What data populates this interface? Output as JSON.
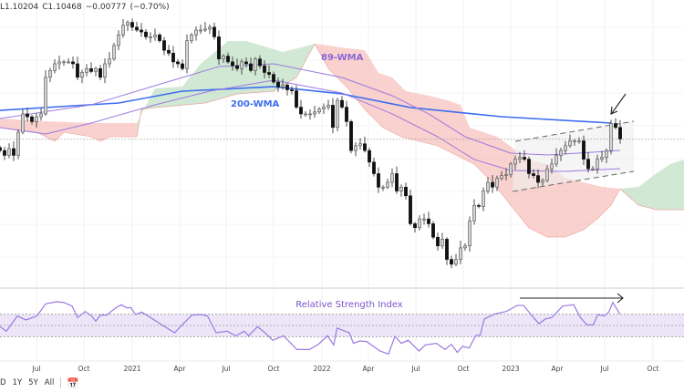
{
  "legend": {
    "low": "L1.10204",
    "close": "C1.10468",
    "change": "−0.00777",
    "change_pct": "(−0.70%)"
  },
  "bottom_bar": {
    "ranges": [
      "D",
      "1Y",
      "5Y",
      "All"
    ],
    "calendar_icon": "calendar-goto-icon"
  },
  "colors": {
    "bull": "#d4d4d4",
    "bear": "#111111",
    "wma200": "#3d6ef0",
    "wma89": "#9c7ae0",
    "cloud_bear": "#f6b9b3",
    "cloud_bull": "#b9ddbd",
    "rsi": "#9c7ae0",
    "rsi_band": "#ece6f8"
  },
  "chart_data": {
    "type": "candlestick",
    "instrument_last_close": 1.10468,
    "time_unit_note": "t index, 1 unit ≈ 1.25 weeks",
    "xlim": [
      0,
      150
    ],
    "ylim": [
      0.95,
      1.2492
    ],
    "x_ticks": [
      {
        "t": 8,
        "label": "Jul"
      },
      {
        "t": 18.4,
        "label": "Oct"
      },
      {
        "t": 29,
        "label": "2021"
      },
      {
        "t": 39.4,
        "label": "Apr"
      },
      {
        "t": 49.6,
        "label": "Jul"
      },
      {
        "t": 60,
        "label": "Oct"
      },
      {
        "t": 70.6,
        "label": "2022"
      },
      {
        "t": 80.8,
        "label": "Apr"
      },
      {
        "t": 91.2,
        "label": "Jul"
      },
      {
        "t": 101.6,
        "label": "Oct"
      },
      {
        "t": 112,
        "label": "2023"
      },
      {
        "t": 122.2,
        "label": "Apr"
      },
      {
        "t": 132.6,
        "label": "Jul"
      },
      {
        "t": 143.2,
        "label": "Oct"
      }
    ],
    "closes": [
      1.093,
      1.088,
      1.095,
      1.088,
      1.112,
      1.131,
      1.128,
      1.123,
      1.128,
      1.131,
      1.169,
      1.176,
      1.183,
      1.185,
      1.185,
      1.185,
      1.183,
      1.169,
      1.174,
      1.178,
      1.175,
      1.178,
      1.169,
      1.183,
      1.188,
      1.202,
      1.213,
      1.223,
      1.226,
      1.221,
      1.218,
      1.216,
      1.211,
      1.211,
      1.213,
      1.207,
      1.197,
      1.194,
      1.185,
      1.183,
      1.178,
      1.207,
      1.213,
      1.218,
      1.218,
      1.219,
      1.221,
      1.211,
      1.188,
      1.191,
      1.185,
      1.181,
      1.178,
      1.185,
      1.183,
      1.176,
      1.188,
      1.181,
      1.174,
      1.172,
      1.164,
      1.159,
      1.161,
      1.156,
      1.155,
      1.138,
      1.131,
      1.131,
      1.131,
      1.133,
      1.136,
      1.138,
      1.14,
      1.117,
      1.145,
      1.138,
      1.123,
      1.093,
      1.098,
      1.1,
      1.093,
      1.081,
      1.069,
      1.055,
      1.055,
      1.06,
      1.069,
      1.051,
      1.055,
      1.046,
      1.017,
      1.013,
      1.022,
      1.022,
      1.017,
      1.003,
      0.994,
      1.001,
      0.98,
      0.975,
      0.98,
      0.992,
      0.994,
      1.02,
      1.036,
      1.035,
      1.051,
      1.06,
      1.055,
      1.064,
      1.067,
      1.068,
      1.079,
      1.084,
      1.086,
      1.084,
      1.069,
      1.067,
      1.06,
      1.062,
      1.074,
      1.079,
      1.088,
      1.093,
      1.098,
      1.103,
      1.103,
      1.103,
      1.084,
      1.074,
      1.074,
      1.084,
      1.086,
      1.093,
      1.121,
      1.117,
      1.105
    ],
    "lines": [
      {
        "name": "200-WMA",
        "label": "200-WMA",
        "color": "#3d6ef0",
        "points": [
          [
            0,
            1.1347
          ],
          [
            26,
            1.1423
          ],
          [
            40,
            1.1546
          ],
          [
            60,
            1.1593
          ],
          [
            75,
            1.1518
          ],
          [
            90,
            1.1376
          ],
          [
            110,
            1.1281
          ],
          [
            134,
            1.1215
          ]
        ]
      },
      {
        "name": "89-WMA",
        "label": "89-WMA",
        "color": "#9c7ae0",
        "points": [
          [
            0,
            1.1262
          ],
          [
            20,
            1.1404
          ],
          [
            40,
            1.1688
          ],
          [
            48,
            1.1801
          ],
          [
            60,
            1.183
          ],
          [
            75,
            1.1688
          ],
          [
            86,
            1.1499
          ],
          [
            94,
            1.131
          ],
          [
            102,
            1.1073
          ],
          [
            112,
            1.0903
          ],
          [
            120,
            1.0884
          ],
          [
            130,
            1.0912
          ],
          [
            136,
            1.0931
          ]
        ]
      },
      {
        "name": "89-WMA-lower",
        "label": "",
        "color": "#9c7ae0",
        "points": [
          [
            0,
            1.1168
          ],
          [
            10,
            1.1101
          ],
          [
            20,
            1.1215
          ],
          [
            34,
            1.1404
          ],
          [
            46,
            1.1546
          ],
          [
            60,
            1.166
          ],
          [
            75,
            1.1527
          ],
          [
            86,
            1.131
          ],
          [
            96,
            1.1073
          ],
          [
            104,
            1.0837
          ],
          [
            112,
            1.0723
          ],
          [
            124,
            1.0714
          ],
          [
            136,
            1.0742
          ]
        ]
      }
    ],
    "cloud": [
      {
        "kind": "bear",
        "upper": [
          [
            0,
            1.1262
          ],
          [
            10,
            1.1234
          ],
          [
            20,
            1.1215
          ],
          [
            30,
            1.1215
          ]
        ],
        "lower": [
          [
            0,
            1.1168
          ],
          [
            8,
            1.112
          ],
          [
            12,
            1.1026
          ],
          [
            14,
            1.112
          ],
          [
            20,
            1.1073
          ],
          [
            22,
            1.1026
          ],
          [
            24,
            1.1073
          ],
          [
            30,
            1.1073
          ]
        ]
      },
      {
        "kind": "bull",
        "upper": [
          [
            30,
            1.1215
          ],
          [
            34,
            1.1574
          ],
          [
            40,
            1.1593
          ],
          [
            44,
            1.183
          ],
          [
            50,
            1.2066
          ],
          [
            54,
            1.2066
          ],
          [
            62,
            1.1953
          ],
          [
            66,
            1.2
          ],
          [
            69,
            1.2038
          ]
        ],
        "lower": [
          [
            30,
            1.1073
          ],
          [
            31,
            1.1357
          ],
          [
            34,
            1.1376
          ],
          [
            45,
            1.1423
          ],
          [
            52,
            1.1518
          ],
          [
            60,
            1.1546
          ],
          [
            65,
            1.1688
          ],
          [
            69,
            1.2038
          ]
        ]
      },
      {
        "kind": "bear",
        "upper": [
          [
            69,
            1.2038
          ],
          [
            72,
            1.2019
          ],
          [
            76,
            1.1991
          ],
          [
            80,
            1.1972
          ],
          [
            83,
            1.1735
          ],
          [
            86,
            1.1688
          ],
          [
            89,
            1.1546
          ],
          [
            94,
            1.1499
          ],
          [
            98,
            1.1451
          ],
          [
            101,
            1.1404
          ],
          [
            103,
            1.1168
          ],
          [
            109,
            1.1073
          ],
          [
            116,
            1.0837
          ],
          [
            120,
            1.0789
          ],
          [
            124,
            1.0647
          ],
          [
            128,
            1.06
          ],
          [
            132,
            1.0553
          ],
          [
            136,
            1.0534
          ]
        ],
        "lower": [
          [
            69,
            1.2038
          ],
          [
            72,
            1.1783
          ],
          [
            76,
            1.1593
          ],
          [
            80,
            1.1357
          ],
          [
            84,
            1.1168
          ],
          [
            88,
            1.1073
          ],
          [
            92,
            1.1026
          ],
          [
            96,
            1.0978
          ],
          [
            100,
            1.0884
          ],
          [
            104,
            1.0789
          ],
          [
            108,
            1.06
          ],
          [
            112,
            1.0364
          ],
          [
            116,
            1.0127
          ],
          [
            120,
            1.0033
          ],
          [
            124,
            1.0033
          ],
          [
            128,
            1.0108
          ],
          [
            131,
            1.0222
          ],
          [
            134,
            1.0364
          ],
          [
            136,
            1.0534
          ]
        ]
      },
      {
        "kind": "bull",
        "upper": [
          [
            136,
            1.0534
          ],
          [
            140,
            1.0553
          ],
          [
            144,
            1.0695
          ],
          [
            147,
            1.0789
          ],
          [
            150,
            1.0837
          ]
        ],
        "lower": [
          [
            136,
            1.0534
          ],
          [
            140,
            1.0364
          ],
          [
            144,
            1.0316
          ],
          [
            150,
            1.0316
          ]
        ]
      }
    ],
    "channel": {
      "upper": [
        [
          113,
          1.1026
        ],
        [
          139,
          1.1234
        ]
      ],
      "lower": [
        [
          112.4,
          1.0506
        ],
        [
          139,
          1.0714
        ]
      ]
    },
    "rsi": {
      "title": "Relative Strength Index",
      "bands": {
        "upper": 60,
        "middle": 50,
        "lower": 40
      },
      "ylim": [
        18,
        82
      ],
      "points": [
        [
          0,
          48.9
        ],
        [
          1.4,
          44.9
        ],
        [
          3.8,
          58.4
        ],
        [
          5.7,
          54.9
        ],
        [
          8.1,
          58.4
        ],
        [
          10,
          69.2
        ],
        [
          12.4,
          71.1
        ],
        [
          13.9,
          70.5
        ],
        [
          15.8,
          67.3
        ],
        [
          17,
          57
        ],
        [
          18.7,
          62.4
        ],
        [
          20.1,
          58.4
        ],
        [
          21,
          53.8
        ],
        [
          22,
          59.2
        ],
        [
          23.4,
          59.2
        ],
        [
          25.4,
          65.7
        ],
        [
          26.6,
          68.4
        ],
        [
          27.8,
          65.7
        ],
        [
          28.7,
          65.9
        ],
        [
          29.7,
          59.7
        ],
        [
          31.1,
          61.9
        ],
        [
          33,
          57
        ],
        [
          35.9,
          49.5
        ],
        [
          38.3,
          43.5
        ],
        [
          40.2,
          51.6
        ],
        [
          42.1,
          59.2
        ],
        [
          44,
          59.7
        ],
        [
          45.5,
          58.4
        ],
        [
          47.4,
          43.5
        ],
        [
          49.8,
          44.9
        ],
        [
          51.7,
          40.8
        ],
        [
          53.6,
          44.9
        ],
        [
          54.5,
          40.8
        ],
        [
          56.5,
          48.9
        ],
        [
          58.4,
          42.5
        ],
        [
          59.8,
          36.8
        ],
        [
          62.2,
          40.8
        ],
        [
          65.1,
          28.6
        ],
        [
          67.9,
          28.6
        ],
        [
          69.9,
          33.5
        ],
        [
          71.8,
          40.8
        ],
        [
          73.2,
          32.7
        ],
        [
          73.9,
          47.6
        ],
        [
          76.6,
          43.5
        ],
        [
          77.5,
          34.1
        ],
        [
          78.9,
          36.2
        ],
        [
          80.4,
          35.7
        ],
        [
          83.3,
          27.3
        ],
        [
          85.2,
          24.6
        ],
        [
          86.6,
          40.3
        ],
        [
          88,
          34.1
        ],
        [
          89.5,
          36.8
        ],
        [
          91.9,
          27.3
        ],
        [
          93.3,
          32.7
        ],
        [
          95.7,
          34.1
        ],
        [
          97.6,
          28.6
        ],
        [
          99,
          33.2
        ],
        [
          100.3,
          26
        ],
        [
          101.4,
          31.4
        ],
        [
          102.9,
          30
        ],
        [
          104.3,
          40.8
        ],
        [
          105.3,
          41.4
        ],
        [
          106.2,
          55.7
        ],
        [
          108.6,
          60.3
        ],
        [
          111,
          62.4
        ],
        [
          112,
          64.6
        ],
        [
          113.4,
          67.8
        ],
        [
          114.8,
          67.8
        ],
        [
          116.7,
          58.4
        ],
        [
          118.2,
          51.6
        ],
        [
          119.6,
          55.7
        ],
        [
          121,
          57
        ],
        [
          123.4,
          67.3
        ],
        [
          125.8,
          68.4
        ],
        [
          127.3,
          57
        ],
        [
          128.7,
          50.5
        ],
        [
          130.1,
          50.5
        ],
        [
          131.1,
          59.7
        ],
        [
          132.5,
          58.4
        ],
        [
          133.5,
          61.9
        ],
        [
          134.4,
          70.5
        ],
        [
          135.9,
          60.3
        ]
      ]
    }
  }
}
